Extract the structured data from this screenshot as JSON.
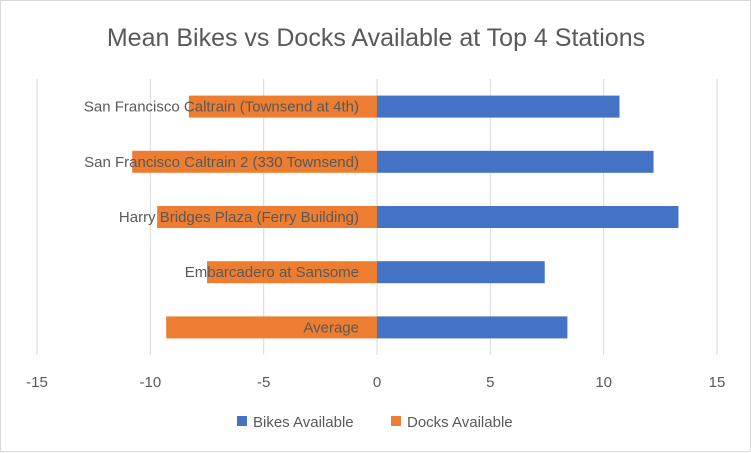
{
  "chart_data": {
    "type": "bar",
    "orientation": "horizontal",
    "title": "Mean Bikes vs Docks Available at Top 4 Stations",
    "categories": [
      "San Francisco Caltrain (Townsend at 4th)",
      "San Francisco Caltrain 2 (330 Townsend)",
      "Harry Bridges Plaza (Ferry Building)",
      "Embarcadero at Sansome",
      "Average"
    ],
    "series": [
      {
        "name": "Bikes Available",
        "color": "#4472c4",
        "values": [
          10.7,
          12.2,
          13.3,
          7.4,
          8.4
        ]
      },
      {
        "name": "Docks Available",
        "color": "#ed7d31",
        "values": [
          -8.3,
          -10.8,
          -9.7,
          -7.5,
          -9.3
        ]
      }
    ],
    "xlim": [
      -15,
      15
    ],
    "xticks": [
      -15,
      -10,
      -5,
      0,
      5,
      10,
      15
    ],
    "xlabel": "",
    "ylabel": "",
    "grid": "vertical",
    "legend_position": "bottom"
  }
}
